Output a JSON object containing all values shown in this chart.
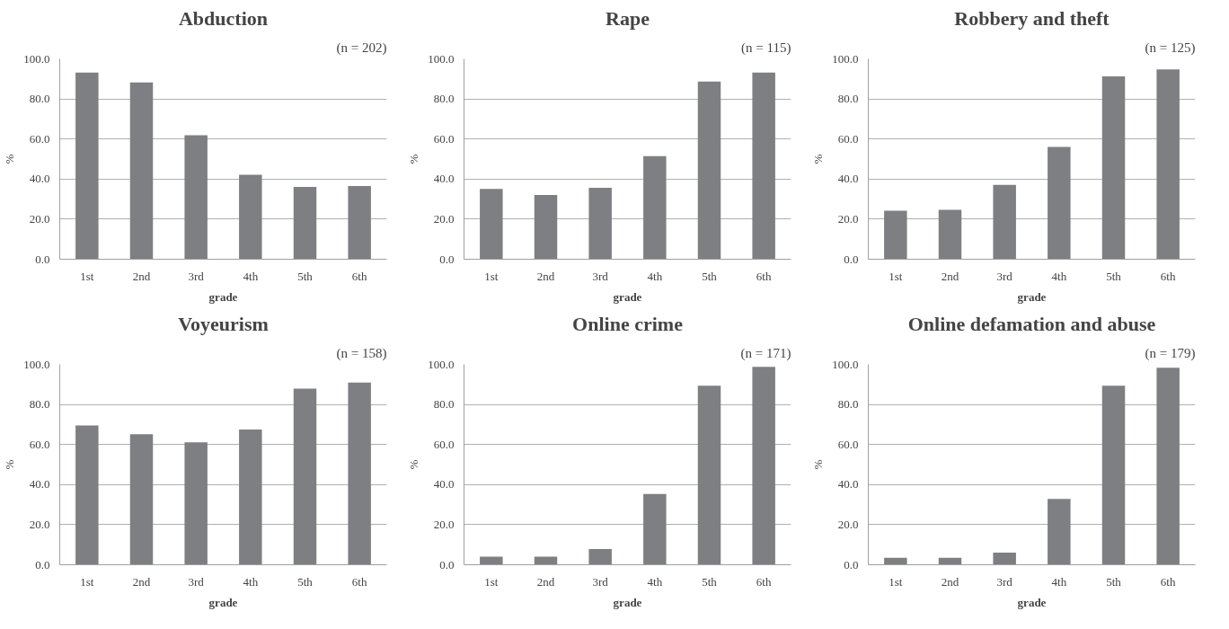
{
  "chart_data": [
    {
      "type": "bar",
      "title": "Abduction",
      "subtitle": "(n = 202)",
      "xlabel": "grade",
      "ylabel": "%",
      "categories": [
        "1st",
        "2nd",
        "3rd",
        "4th",
        "5th",
        "6th"
      ],
      "values": [
        93.2,
        88.2,
        61.9,
        42.1,
        36.1,
        36.6
      ],
      "color": "#7e7f83",
      "ylim": [
        0,
        100
      ],
      "yticks": [
        {
          "value": 0,
          "label": "0.0"
        },
        {
          "value": 20,
          "label": "20.0"
        },
        {
          "value": 40,
          "label": "40.0"
        },
        {
          "value": 60,
          "label": "60.0"
        },
        {
          "value": 80,
          "label": "80.0"
        },
        {
          "value": 100,
          "label": "100.0"
        }
      ],
      "grid": "y"
    },
    {
      "type": "bar",
      "title": "Rape",
      "subtitle": "(n = 115)",
      "xlabel": "grade",
      "ylabel": "%",
      "categories": [
        "1st",
        "2nd",
        "3rd",
        "4th",
        "5th",
        "6th"
      ],
      "values": [
        35.1,
        32.1,
        35.6,
        51.5,
        88.7,
        93.2
      ],
      "color": "#7e7f83",
      "ylim": [
        0,
        100
      ],
      "yticks": [
        {
          "value": 0,
          "label": "0.0"
        },
        {
          "value": 20,
          "label": "20.0"
        },
        {
          "value": 40,
          "label": "40.0"
        },
        {
          "value": 60,
          "label": "60.0"
        },
        {
          "value": 80,
          "label": "80.0"
        },
        {
          "value": 100,
          "label": "100.0"
        }
      ],
      "grid": "y"
    },
    {
      "type": "bar",
      "title": "Robbery and theft",
      "subtitle": "(n = 125)",
      "xlabel": "grade",
      "ylabel": "%",
      "categories": [
        "1st",
        "2nd",
        "3rd",
        "4th",
        "5th",
        "6th"
      ],
      "values": [
        24.2,
        24.7,
        37.1,
        56.0,
        91.2,
        94.7
      ],
      "color": "#7e7f83",
      "ylim": [
        0,
        100
      ],
      "yticks": [
        {
          "value": 0,
          "label": "0.0"
        },
        {
          "value": 20,
          "label": "20.0"
        },
        {
          "value": 40,
          "label": "40.0"
        },
        {
          "value": 60,
          "label": "60.0"
        },
        {
          "value": 80,
          "label": "80.0"
        },
        {
          "value": 100,
          "label": "100.0"
        }
      ],
      "grid": "y"
    },
    {
      "type": "bar",
      "title": "Voyeurism",
      "subtitle": "(n = 158)",
      "xlabel": "grade",
      "ylabel": "%",
      "categories": [
        "1st",
        "2nd",
        "3rd",
        "4th",
        "5th",
        "6th"
      ],
      "values": [
        69.5,
        65.1,
        61.1,
        67.5,
        87.9,
        90.9
      ],
      "color": "#7e7f83",
      "ylim": [
        0,
        100
      ],
      "yticks": [
        {
          "value": 0,
          "label": "0.0"
        },
        {
          "value": 20,
          "label": "20.0"
        },
        {
          "value": 40,
          "label": "40.0"
        },
        {
          "value": 60,
          "label": "60.0"
        },
        {
          "value": 80,
          "label": "80.0"
        },
        {
          "value": 100,
          "label": "100.0"
        }
      ],
      "grid": "y"
    },
    {
      "type": "bar",
      "title": "Online crime",
      "subtitle": "(n = 171)",
      "xlabel": "grade",
      "ylabel": "%",
      "categories": [
        "1st",
        "2nd",
        "3rd",
        "4th",
        "5th",
        "6th"
      ],
      "values": [
        4.0,
        4.0,
        7.9,
        35.3,
        89.4,
        98.8
      ],
      "color": "#7e7f83",
      "ylim": [
        0,
        100
      ],
      "yticks": [
        {
          "value": 0,
          "label": "0.0"
        },
        {
          "value": 20,
          "label": "20.0"
        },
        {
          "value": 40,
          "label": "40.0"
        },
        {
          "value": 60,
          "label": "60.0"
        },
        {
          "value": 80,
          "label": "80.0"
        },
        {
          "value": 100,
          "label": "100.0"
        }
      ],
      "grid": "y"
    },
    {
      "type": "bar",
      "title": "Online defamation and abuse",
      "subtitle": "(n = 179)",
      "xlabel": "grade",
      "ylabel": "%",
      "categories": [
        "1st",
        "2nd",
        "3rd",
        "4th",
        "5th",
        "6th"
      ],
      "values": [
        3.5,
        3.5,
        6.0,
        32.8,
        89.4,
        98.3
      ],
      "color": "#7e7f83",
      "ylim": [
        0,
        100
      ],
      "yticks": [
        {
          "value": 0,
          "label": "0.0"
        },
        {
          "value": 20,
          "label": "20.0"
        },
        {
          "value": 40,
          "label": "40.0"
        },
        {
          "value": 60,
          "label": "60.0"
        },
        {
          "value": 80,
          "label": "80.0"
        },
        {
          "value": 100,
          "label": "100.0"
        }
      ],
      "grid": "y"
    }
  ]
}
